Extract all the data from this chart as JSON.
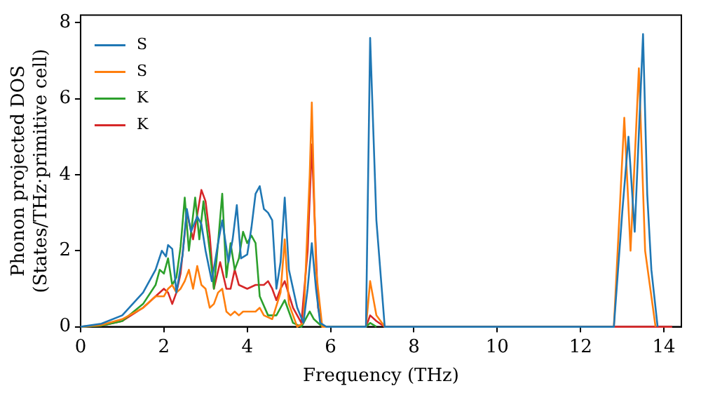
{
  "chart_data": {
    "type": "line",
    "xlabel": "Frequency (THz)",
    "ylabel": "Phonon projected DOS\n(States/THz·primitive cell)",
    "xlim": [
      0,
      14.42
    ],
    "ylim": [
      0,
      8.2
    ],
    "xticks": [
      0,
      2,
      4,
      6,
      8,
      10,
      12,
      14
    ],
    "yticks": [
      0,
      2,
      4,
      6,
      8
    ],
    "grid": false,
    "legend": "top left",
    "marker": "none",
    "line_style": "solid",
    "series": [
      {
        "name": "S",
        "color": "#1f77b4",
        "x": [
          0,
          0.5,
          1,
          1.5,
          1.8,
          1.95,
          2.05,
          2.1,
          2.2,
          2.3,
          2.45,
          2.55,
          2.65,
          2.8,
          2.9,
          3.0,
          3.15,
          3.3,
          3.4,
          3.55,
          3.65,
          3.75,
          3.85,
          4.0,
          4.1,
          4.2,
          4.3,
          4.4,
          4.5,
          4.6,
          4.7,
          4.8,
          4.9,
          5.0,
          5.2,
          5.35,
          5.45,
          5.55,
          5.65,
          5.75,
          5.9,
          6.85,
          6.95,
          7.1,
          7.3,
          12.8,
          13.0,
          13.15,
          13.3,
          13.5,
          13.6,
          13.7,
          13.85
        ],
        "values": [
          0,
          0.08,
          0.3,
          0.9,
          1.5,
          2.0,
          1.85,
          2.15,
          2.05,
          0.9,
          1.9,
          3.1,
          2.5,
          2.9,
          2.7,
          2.0,
          1.2,
          2.2,
          2.8,
          1.7,
          2.3,
          3.2,
          1.8,
          1.9,
          2.6,
          3.5,
          3.7,
          3.1,
          3.0,
          2.8,
          1.0,
          1.7,
          3.4,
          1.5,
          0.5,
          0.1,
          1.0,
          2.2,
          1.0,
          0.1,
          0,
          0,
          7.6,
          2.8,
          0,
          0,
          3.0,
          5.0,
          2.5,
          7.7,
          3.5,
          1.5,
          0
        ]
      },
      {
        "name": "S",
        "color": "#ff7f0e",
        "x": [
          0,
          0.5,
          1,
          1.5,
          1.8,
          2.0,
          2.1,
          2.2,
          2.3,
          2.4,
          2.5,
          2.6,
          2.7,
          2.8,
          2.9,
          3.0,
          3.1,
          3.2,
          3.3,
          3.4,
          3.5,
          3.6,
          3.7,
          3.8,
          3.9,
          4.0,
          4.2,
          4.3,
          4.4,
          4.6,
          4.8,
          4.9,
          5.0,
          5.2,
          5.35,
          5.5,
          5.55,
          5.65,
          5.8,
          6.85,
          6.95,
          7.1,
          7.3,
          12.8,
          13.05,
          13.2,
          13.4,
          13.55,
          13.8
        ],
        "values": [
          0,
          0.05,
          0.2,
          0.5,
          0.8,
          0.8,
          1.0,
          1.1,
          0.9,
          1.0,
          1.2,
          1.5,
          1.0,
          1.6,
          1.1,
          1.0,
          0.5,
          0.6,
          0.9,
          1.0,
          0.4,
          0.3,
          0.4,
          0.3,
          0.4,
          0.4,
          0.4,
          0.5,
          0.3,
          0.2,
          0.9,
          2.3,
          0.6,
          0,
          0.1,
          4.0,
          5.9,
          1.5,
          0,
          0,
          1.2,
          0.3,
          0,
          0,
          5.5,
          2.0,
          6.8,
          2.0,
          0
        ]
      },
      {
        "name": "K",
        "color": "#2ca02c",
        "x": [
          0,
          0.5,
          1,
          1.5,
          1.8,
          1.9,
          2.0,
          2.1,
          2.2,
          2.3,
          2.4,
          2.5,
          2.6,
          2.75,
          2.85,
          2.95,
          3.1,
          3.2,
          3.3,
          3.4,
          3.5,
          3.6,
          3.7,
          3.8,
          3.9,
          4.0,
          4.1,
          4.2,
          4.3,
          4.5,
          4.7,
          4.9,
          5.1,
          5.3,
          5.5,
          5.6,
          5.8,
          6.85,
          6.95,
          7.1
        ],
        "values": [
          0,
          0.03,
          0.15,
          0.6,
          1.1,
          1.5,
          1.4,
          1.8,
          1.1,
          1.3,
          2.1,
          3.4,
          2.0,
          3.4,
          2.3,
          3.3,
          2.0,
          1.0,
          2.2,
          3.5,
          1.3,
          2.2,
          1.5,
          1.8,
          2.5,
          2.2,
          2.4,
          2.2,
          0.8,
          0.3,
          0.3,
          0.7,
          0.1,
          0,
          0.4,
          0.2,
          0,
          0,
          0.1,
          0
        ]
      },
      {
        "name": "K",
        "color": "#d62728",
        "x": [
          0,
          0.5,
          1,
          1.5,
          1.8,
          2.0,
          2.1,
          2.2,
          2.3,
          2.4,
          2.55,
          2.7,
          2.9,
          3.0,
          3.1,
          3.2,
          3.35,
          3.5,
          3.6,
          3.7,
          3.8,
          4.0,
          4.2,
          4.4,
          4.5,
          4.6,
          4.7,
          4.8,
          4.9,
          5.1,
          5.3,
          5.45,
          5.55,
          5.7,
          5.8,
          6.85,
          6.95,
          7.1,
          7.3,
          14.2
        ],
        "values": [
          0,
          0.03,
          0.15,
          0.5,
          0.8,
          1.0,
          0.9,
          0.6,
          0.9,
          1.4,
          3.0,
          2.3,
          3.6,
          3.3,
          2.4,
          1.0,
          1.7,
          1.0,
          1.0,
          1.5,
          1.1,
          1.0,
          1.1,
          1.1,
          1.2,
          1.0,
          0.7,
          1.0,
          1.2,
          0.5,
          0.1,
          2.0,
          4.8,
          0.5,
          0,
          0,
          0.3,
          0.15,
          0,
          0
        ]
      }
    ]
  }
}
